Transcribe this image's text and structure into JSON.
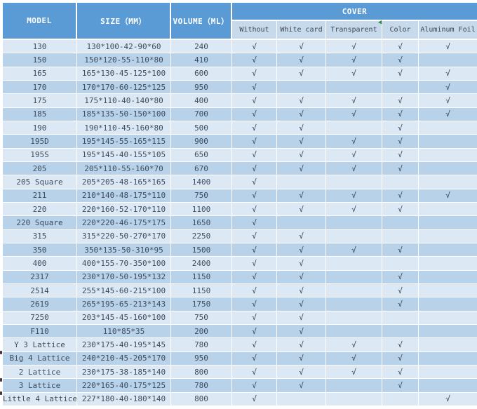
{
  "table": {
    "header": {
      "model": "MODEL",
      "size": "SIZE（MM）",
      "volume": "VOLUME（ML）",
      "cover": "COVER",
      "cover_options": [
        "Without",
        "White card",
        "Transparent",
        "Color",
        "Aluminum Foil"
      ]
    },
    "check_glyph": "√",
    "rows": [
      {
        "model": "130",
        "size": "130*100-42-90*60",
        "volume": "240",
        "covers": [
          true,
          true,
          true,
          true,
          true
        ]
      },
      {
        "model": "150",
        "size": "150*120-55-110*80",
        "volume": "410",
        "covers": [
          true,
          true,
          true,
          true,
          false
        ]
      },
      {
        "model": "165",
        "size": "165*130-45-125*100",
        "volume": "600",
        "covers": [
          true,
          true,
          true,
          true,
          true
        ]
      },
      {
        "model": "170",
        "size": "170*170-60-125*125",
        "volume": "950",
        "covers": [
          true,
          false,
          false,
          false,
          true
        ]
      },
      {
        "model": "175",
        "size": "175*110-40-140*80",
        "volume": "400",
        "covers": [
          true,
          true,
          true,
          true,
          true
        ]
      },
      {
        "model": "185",
        "size": "185*135-50-150*100",
        "volume": "700",
        "covers": [
          true,
          true,
          true,
          true,
          true
        ]
      },
      {
        "model": "190",
        "size": "190*110-45-160*80",
        "volume": "500",
        "covers": [
          true,
          true,
          false,
          true,
          false
        ]
      },
      {
        "model": "195D",
        "size": "195*145-55-165*115",
        "volume": "900",
        "covers": [
          true,
          true,
          true,
          true,
          false
        ]
      },
      {
        "model": "195S",
        "size": "195*145-40-155*105",
        "volume": "650",
        "covers": [
          true,
          true,
          true,
          true,
          false
        ]
      },
      {
        "model": "205",
        "size": "205*110-55-160*70",
        "volume": "670",
        "covers": [
          true,
          true,
          true,
          true,
          false
        ]
      },
      {
        "model": "205 Square",
        "size": "205*205-48-165*165",
        "volume": "1400",
        "covers": [
          true,
          false,
          false,
          false,
          false
        ]
      },
      {
        "model": "211",
        "size": "210*140-48-175*110",
        "volume": "750",
        "covers": [
          true,
          true,
          true,
          true,
          true
        ]
      },
      {
        "model": "220",
        "size": "220*160-52-170*110",
        "volume": "1100",
        "covers": [
          true,
          true,
          true,
          true,
          false
        ]
      },
      {
        "model": "220 Square",
        "size": "220*220-46-175*175",
        "volume": "1650",
        "covers": [
          true,
          false,
          false,
          false,
          false
        ]
      },
      {
        "model": "315",
        "size": "315*220-50-270*170",
        "volume": "2250",
        "covers": [
          true,
          true,
          false,
          false,
          false
        ]
      },
      {
        "model": "350",
        "size": "350*135-50-310*95",
        "volume": "1500",
        "covers": [
          true,
          true,
          true,
          true,
          false
        ]
      },
      {
        "model": "400",
        "size": "400*155-70-350*100",
        "volume": "2400",
        "covers": [
          true,
          true,
          false,
          false,
          false
        ]
      },
      {
        "model": "2317",
        "size": "230*170-50-195*132",
        "volume": "1150",
        "covers": [
          true,
          true,
          false,
          true,
          false
        ]
      },
      {
        "model": "2514",
        "size": "255*145-60-215*100",
        "volume": "1150",
        "covers": [
          true,
          true,
          false,
          true,
          false
        ]
      },
      {
        "model": "2619",
        "size": "265*195-65-213*143",
        "volume": "1750",
        "covers": [
          true,
          true,
          false,
          true,
          false
        ]
      },
      {
        "model": "7250",
        "size": "203*145-45-160*100",
        "volume": "750",
        "covers": [
          true,
          true,
          false,
          false,
          false
        ]
      },
      {
        "model": "F110",
        "size": "110*85*35",
        "volume": "200",
        "covers": [
          true,
          true,
          false,
          false,
          false
        ]
      },
      {
        "model": "Y 3 Lattice",
        "size": "230*175-40-195*145",
        "volume": "780",
        "covers": [
          true,
          true,
          true,
          true,
          false
        ]
      },
      {
        "model": "Big 4 Lattice",
        "size": "240*210-45-205*170",
        "volume": "950",
        "covers": [
          true,
          true,
          true,
          true,
          false
        ]
      },
      {
        "model": "2 Lattice",
        "size": "230*175-38-185*140",
        "volume": "800",
        "covers": [
          true,
          true,
          true,
          true,
          false
        ]
      },
      {
        "model": "3 Lattice",
        "size": "220*165-40-175*125",
        "volume": "780",
        "covers": [
          true,
          true,
          false,
          true,
          false
        ]
      },
      {
        "model": "Little 4 Lattice",
        "size": "227*180-40-180*140",
        "volume": "800",
        "covers": [
          true,
          false,
          false,
          false,
          true
        ]
      }
    ]
  },
  "colors": {
    "header_blue": "#5b9bd5",
    "subheader_bg": "#c6daec",
    "row_light": "#dce9f5",
    "row_dark": "#b7d2e9",
    "body_text": "#3e4c5e",
    "marker_green": "#2e8b3a"
  }
}
